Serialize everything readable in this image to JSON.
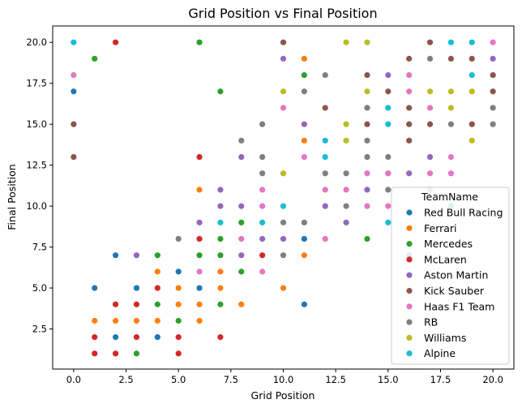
{
  "chart_data": {
    "type": "scatter",
    "title": "Grid Position vs Final Position",
    "xlabel": "Grid Position",
    "ylabel": "Final Position",
    "xlim": [
      -1,
      21
    ],
    "ylim": [
      0.05,
      21
    ],
    "xticks": [
      0.0,
      2.5,
      5.0,
      7.5,
      10.0,
      12.5,
      15.0,
      17.5,
      20.0
    ],
    "yticks": [
      2.5,
      5.0,
      7.5,
      10.0,
      12.5,
      15.0,
      17.5,
      20.0
    ],
    "xtick_labels": [
      "0.0",
      "2.5",
      "5.0",
      "7.5",
      "10.0",
      "12.5",
      "15.0",
      "17.5",
      "20.0"
    ],
    "ytick_labels": [
      "2.5",
      "5.0",
      "7.5",
      "10.0",
      "12.5",
      "15.0",
      "17.5",
      "20.0"
    ],
    "grid": false,
    "legend": {
      "title": "TeamName",
      "placement": "lower-right"
    },
    "series": [
      {
        "name": "Red Bull Racing",
        "color": "#1f77b4",
        "points": [
          [
            0,
            17
          ],
          [
            1,
            5
          ],
          [
            2,
            2
          ],
          [
            2,
            7
          ],
          [
            3,
            5
          ],
          [
            4,
            2
          ],
          [
            5,
            6
          ],
          [
            6,
            5
          ],
          [
            11,
            8
          ],
          [
            11,
            4
          ],
          [
            16,
            7
          ]
        ]
      },
      {
        "name": "Ferrari",
        "color": "#ff7f0e",
        "points": [
          [
            1,
            3
          ],
          [
            2,
            3
          ],
          [
            2,
            4
          ],
          [
            3,
            3
          ],
          [
            4,
            3
          ],
          [
            4,
            6
          ],
          [
            5,
            4
          ],
          [
            5,
            5
          ],
          [
            6,
            3
          ],
          [
            6,
            4
          ],
          [
            6,
            11
          ],
          [
            7,
            6
          ],
          [
            7,
            5
          ],
          [
            8,
            4
          ],
          [
            10,
            5
          ],
          [
            11,
            7
          ],
          [
            11,
            14
          ],
          [
            11,
            19
          ]
        ]
      },
      {
        "name": "Mercedes",
        "color": "#2ca02c",
        "points": [
          [
            1,
            19
          ],
          [
            3,
            1
          ],
          [
            4,
            4
          ],
          [
            4,
            7
          ],
          [
            5,
            3
          ],
          [
            6,
            7
          ],
          [
            6,
            20
          ],
          [
            7,
            4
          ],
          [
            7,
            7
          ],
          [
            7,
            8
          ],
          [
            7,
            17
          ],
          [
            8,
            6
          ],
          [
            8,
            9
          ],
          [
            11,
            18
          ],
          [
            14,
            8
          ],
          [
            18,
            10
          ]
        ]
      },
      {
        "name": "McLaren",
        "color": "#d62728",
        "points": [
          [
            1,
            1
          ],
          [
            1,
            2
          ],
          [
            2,
            1
          ],
          [
            2,
            4
          ],
          [
            2,
            20
          ],
          [
            3,
            2
          ],
          [
            3,
            4
          ],
          [
            4,
            5
          ],
          [
            5,
            1
          ],
          [
            5,
            2
          ],
          [
            6,
            8
          ],
          [
            6,
            13
          ],
          [
            7,
            2
          ],
          [
            9,
            7
          ]
        ]
      },
      {
        "name": "Aston Martin",
        "color": "#9467bd",
        "points": [
          [
            3,
            7
          ],
          [
            6,
            9
          ],
          [
            7,
            10
          ],
          [
            7,
            11
          ],
          [
            8,
            7
          ],
          [
            8,
            10
          ],
          [
            8,
            13
          ],
          [
            9,
            8
          ],
          [
            10,
            8
          ],
          [
            10,
            19
          ],
          [
            11,
            15
          ],
          [
            12,
            10
          ],
          [
            13,
            9
          ],
          [
            14,
            11
          ],
          [
            15,
            12
          ],
          [
            15,
            18
          ],
          [
            16,
            12
          ],
          [
            17,
            13
          ],
          [
            20,
            19
          ]
        ]
      },
      {
        "name": "Kick Sauber",
        "color": "#8c564b",
        "points": [
          [
            0,
            13
          ],
          [
            0,
            15
          ],
          [
            10,
            20
          ],
          [
            12,
            16
          ],
          [
            14,
            15
          ],
          [
            14,
            18
          ],
          [
            15,
            17
          ],
          [
            16,
            14
          ],
          [
            16,
            15
          ],
          [
            16,
            16
          ],
          [
            16,
            19
          ],
          [
            17,
            15
          ],
          [
            17,
            20
          ],
          [
            18,
            19
          ],
          [
            19,
            15
          ],
          [
            19,
            19
          ],
          [
            20,
            17
          ],
          [
            20,
            18
          ]
        ]
      },
      {
        "name": "Haas F1 Team",
        "color": "#e377c2",
        "points": [
          [
            0,
            18
          ],
          [
            6,
            6
          ],
          [
            8,
            8
          ],
          [
            9,
            6
          ],
          [
            9,
            10
          ],
          [
            9,
            11
          ],
          [
            10,
            16
          ],
          [
            11,
            13
          ],
          [
            12,
            8
          ],
          [
            12,
            11
          ],
          [
            13,
            11
          ],
          [
            14,
            10
          ],
          [
            14,
            12
          ],
          [
            15,
            10
          ],
          [
            15,
            12
          ],
          [
            16,
            17
          ],
          [
            16,
            18
          ],
          [
            17,
            11
          ],
          [
            17,
            12
          ],
          [
            17,
            16
          ],
          [
            18,
            12
          ],
          [
            18,
            13
          ],
          [
            20,
            20
          ]
        ]
      },
      {
        "name": "RB",
        "color": "#7f7f7f",
        "points": [
          [
            5,
            8
          ],
          [
            8,
            14
          ],
          [
            9,
            12
          ],
          [
            9,
            13
          ],
          [
            9,
            15
          ],
          [
            10,
            7
          ],
          [
            10,
            9
          ],
          [
            11,
            9
          ],
          [
            11,
            17
          ],
          [
            12,
            12
          ],
          [
            12,
            18
          ],
          [
            13,
            10
          ],
          [
            13,
            12
          ],
          [
            14,
            13
          ],
          [
            14,
            14
          ],
          [
            14,
            16
          ],
          [
            15,
            11
          ],
          [
            15,
            13
          ],
          [
            17,
            19
          ],
          [
            18,
            15
          ],
          [
            20,
            15
          ],
          [
            20,
            16
          ]
        ]
      },
      {
        "name": "Williams",
        "color": "#bcbd22",
        "points": [
          [
            10,
            12
          ],
          [
            10,
            17
          ],
          [
            13,
            14
          ],
          [
            13,
            15
          ],
          [
            13,
            20
          ],
          [
            14,
            17
          ],
          [
            14,
            20
          ],
          [
            17,
            17
          ],
          [
            18,
            16
          ],
          [
            18,
            17
          ],
          [
            19,
            14
          ],
          [
            19,
            17
          ]
        ]
      },
      {
        "name": "Alpine",
        "color": "#17becf",
        "points": [
          [
            0,
            20
          ],
          [
            7,
            9
          ],
          [
            9,
            9
          ],
          [
            10,
            10
          ],
          [
            12,
            13
          ],
          [
            12,
            14
          ],
          [
            15,
            9
          ],
          [
            15,
            15
          ],
          [
            15,
            16
          ],
          [
            18,
            20
          ],
          [
            19,
            18
          ],
          [
            19,
            20
          ]
        ]
      }
    ]
  }
}
